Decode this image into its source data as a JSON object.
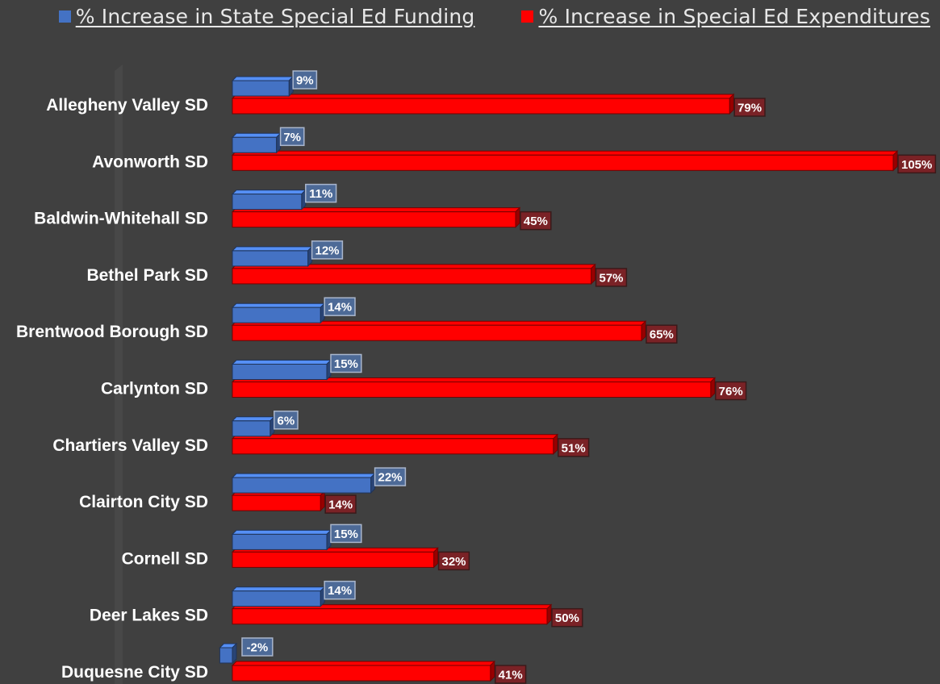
{
  "chart_data": {
    "type": "bar",
    "orientation": "horizontal",
    "categories": [
      "Allegheny Valley SD",
      "Avonworth SD",
      "Baldwin-Whitehall SD",
      "Bethel Park SD",
      "Brentwood Borough SD",
      "Carlynton SD",
      "Chartiers Valley SD",
      "Clairton City SD",
      "Cornell SD",
      "Deer Lakes SD",
      "Duquesne City SD"
    ],
    "series": [
      {
        "name": "% Increase in State Special Ed Funding",
        "color": "#4472c4",
        "values": [
          9,
          7,
          11,
          12,
          14,
          15,
          6,
          22,
          15,
          14,
          -2
        ],
        "labels": [
          "9%",
          "7%",
          "11%",
          "12%",
          "14%",
          "15%",
          "6%",
          "22%",
          "15%",
          "14%",
          "-2%"
        ]
      },
      {
        "name": "% Increase in Special Ed Expenditures",
        "color": "#ff0000",
        "values": [
          79,
          105,
          45,
          57,
          65,
          76,
          51,
          14,
          32,
          50,
          41
        ],
        "labels": [
          "79%",
          "105%",
          "45%",
          "57%",
          "65%",
          "76%",
          "51%",
          "14%",
          "32%",
          "50%",
          "41%"
        ]
      }
    ],
    "legend_position": "top-right",
    "grid": false
  }
}
